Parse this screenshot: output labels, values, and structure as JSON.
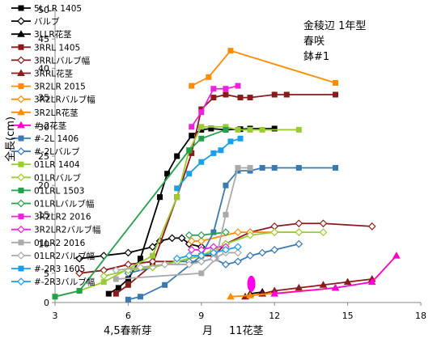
{
  "chart_data": {
    "type": "line",
    "xlabel": "月",
    "ylabel": "全長(cm)",
    "xlim": [
      3,
      18
    ],
    "ylim": [
      0,
      50
    ],
    "xticks": [
      3,
      6,
      9,
      12,
      15,
      18
    ],
    "yticks": [
      0,
      5,
      10,
      15,
      20,
      25,
      30,
      35,
      40,
      45,
      50
    ],
    "grid": "none",
    "legend_position": "left-overlay",
    "annotations": [
      {
        "id": "title1",
        "text": "金稜辺  1年型",
        "color": "#000000"
      },
      {
        "id": "title2",
        "text": "春咲",
        "color": "#000000"
      },
      {
        "id": "title3",
        "text": "鉢#1",
        "color": "#000000"
      },
      {
        "id": "spring",
        "text": "4,5春新芽",
        "color": "#1e1ecc",
        "x": 6.7
      },
      {
        "id": "autumn",
        "text": "11花茎",
        "color": "#1e1ecc",
        "x": 11.0
      }
    ],
    "series": [
      {
        "name": "5L LR 1405",
        "color": "#000000",
        "marker": "square",
        "fill": true,
        "x": [
          5.2,
          5.6,
          6.0,
          6.5,
          7.3,
          7.6,
          8.0,
          8.6,
          9.0,
          9.4,
          10.0,
          10.6,
          11.0,
          12.0
        ],
        "y": [
          1.5,
          2.5,
          4.0,
          7.5,
          18.0,
          22.0,
          25.0,
          28.5,
          29.5,
          29.7,
          29.5,
          29.6,
          29.7,
          29.7
        ]
      },
      {
        "name": "バルブ",
        "color": "#000000",
        "marker": "diamond",
        "fill": false,
        "x": [
          4.0,
          5.0,
          6.0,
          7.0,
          7.3,
          7.8,
          8.2,
          8.5,
          9.0
        ],
        "y": [
          7.5,
          8.0,
          8.5,
          9.5,
          10.5,
          11.0,
          11.0,
          10.0,
          9.5
        ]
      },
      {
        "name": "3LLR花茎",
        "color": "#000000",
        "marker": "triangle",
        "fill": true,
        "x": [
          11.0,
          11.5
        ],
        "y": [
          1.5,
          1.8
        ]
      },
      {
        "name": "3RRL 1405",
        "color": "#8b1a1a",
        "marker": "square",
        "fill": true,
        "x": [
          5.5,
          6.0,
          7.0,
          8.0,
          8.6,
          9.0,
          9.5,
          10.0,
          10.6,
          11.0,
          12.0,
          12.5,
          14.5
        ],
        "y": [
          1.5,
          3.0,
          6.5,
          18.0,
          25.5,
          33.0,
          35.0,
          35.5,
          35.0,
          35.0,
          35.5,
          35.5,
          35.5
        ]
      },
      {
        "name": "3RRLバルブ幅",
        "color": "#8b1a1a",
        "marker": "diamond",
        "fill": false,
        "x": [
          4.0,
          5.0,
          6.0,
          7.0,
          8.0,
          9.0,
          9.5,
          10.0,
          11.0,
          12.0,
          13.0,
          14.0,
          16.0
        ],
        "y": [
          5.0,
          5.5,
          6.5,
          7.0,
          7.0,
          8.0,
          8.0,
          10.0,
          12.0,
          13.0,
          13.5,
          13.5,
          13.0
        ]
      },
      {
        "name": "3RRL花茎",
        "color": "#8b1a1a",
        "marker": "triangle",
        "fill": true,
        "x": [
          10.8,
          11.5,
          12.0,
          13.0,
          14.0,
          15.0,
          16.0
        ],
        "y": [
          1.0,
          1.5,
          2.0,
          2.5,
          3.0,
          3.5,
          4.0
        ]
      },
      {
        "name": "3R2LR 2015",
        "color": "#ff8c00",
        "marker": "square",
        "fill": true,
        "x": [
          8.6,
          9.3,
          10.2,
          14.5
        ],
        "y": [
          37.0,
          38.5,
          43.0,
          37.5
        ]
      },
      {
        "name": "3R2LRバルブ幅",
        "color": "#ff8c00",
        "marker": "diamond",
        "fill": false,
        "x": [
          8.6,
          9.0,
          10.5,
          11.0,
          12.0,
          13.0
        ],
        "y": [
          10.5,
          10.5,
          12.0,
          12.0,
          12.0,
          12.0
        ]
      },
      {
        "name": "3R2LR花茎",
        "color": "#ff8c00",
        "marker": "triangle",
        "fill": true,
        "x": [
          10.2,
          11.0,
          14.5
        ],
        "y": [
          1.0,
          1.2,
          2.5
        ]
      },
      {
        "name": "#-2花茎",
        "color": "#ff00cc",
        "marker": "triangle",
        "fill": true,
        "x": [
          12.0,
          14.5,
          16.0,
          17.0
        ],
        "y": [
          1.5,
          2.5,
          3.5,
          8.0
        ]
      },
      {
        "name": "#-2L 1406",
        "color": "#3a7ab0",
        "marker": "square",
        "fill": true,
        "x": [
          6.0,
          6.5,
          7.5,
          9.0,
          9.5,
          10.0,
          10.5,
          11.0,
          11.5,
          12.0,
          13.0,
          14.5
        ],
        "y": [
          0.5,
          1.0,
          3.0,
          8.0,
          12.0,
          20.0,
          22.5,
          22.5,
          23.0,
          23.0,
          23.0,
          23.0
        ]
      },
      {
        "name": "#-2Lバルブ",
        "color": "#3a7ab0",
        "marker": "diamond",
        "fill": false,
        "x": [
          6.0,
          7.0,
          8.0,
          8.5,
          9.0,
          9.5,
          10.0,
          10.5,
          11.0,
          11.5,
          12.0,
          13.0
        ],
        "y": [
          5.0,
          6.0,
          7.0,
          7.0,
          7.0,
          7.5,
          6.5,
          7.0,
          8.0,
          8.5,
          9.0,
          10.0
        ]
      },
      {
        "name": "01LR 1404",
        "color": "#9acd32",
        "marker": "square",
        "fill": true,
        "x": [
          3.0,
          4.0,
          5.0,
          7.0,
          8.0,
          8.5,
          9.0,
          10.0,
          10.5,
          11.0,
          11.5,
          13.0
        ],
        "y": [
          1.0,
          2.0,
          3.5,
          8.0,
          18.0,
          26.0,
          30.0,
          30.0,
          29.5,
          29.5,
          29.5,
          29.5
        ]
      },
      {
        "name": "01LRバルブ",
        "color": "#9acd32",
        "marker": "diamond",
        "fill": false,
        "x": [
          5.0,
          6.0,
          7.0,
          8.0,
          9.0,
          9.5,
          10.0,
          11.0,
          12.0,
          13.0,
          14.0
        ],
        "y": [
          4.5,
          5.5,
          6.0,
          7.0,
          8.0,
          9.0,
          10.0,
          11.5,
          12.0,
          12.0,
          12.0
        ]
      },
      {
        "name": "01LRL 1503",
        "color": "#22a04a",
        "marker": "square",
        "fill": true,
        "x": [
          3.0,
          4.0,
          8.5,
          9.0,
          10.0
        ],
        "y": [
          1.0,
          2.0,
          26.0,
          28.0,
          29.5
        ]
      },
      {
        "name": "01LRLバルブ幅",
        "color": "#22a04a",
        "marker": "diamond",
        "fill": false,
        "x": [
          8.5,
          9.0,
          10.0
        ],
        "y": [
          11.5,
          11.5,
          12.0
        ]
      },
      {
        "name": "3R2LR2 2016",
        "color": "#ee22dd",
        "marker": "square",
        "fill": true,
        "x": [
          8.6,
          9.0,
          9.5,
          10.0,
          10.5
        ],
        "y": [
          30.0,
          32.5,
          36.5,
          36.5,
          37.0
        ]
      },
      {
        "name": "3R2LR2バルブ幅",
        "color": "#ee22dd",
        "marker": "diamond",
        "fill": false,
        "x": [
          8.6,
          9.0,
          9.5,
          10.0
        ],
        "y": [
          9.0,
          9.0,
          9.5,
          9.5
        ]
      },
      {
        "name": "01LR2 2016",
        "color": "#aaaaaa",
        "marker": "square",
        "fill": true,
        "x": [
          5.5,
          9.0,
          9.6,
          10.0,
          10.5,
          11.0
        ],
        "y": [
          4.0,
          5.0,
          7.5,
          15.0,
          23.0,
          23.0
        ]
      },
      {
        "name": "01LR2バルブ幅",
        "color": "#aaaaaa",
        "marker": "diamond",
        "fill": false,
        "x": [
          5.5,
          6.5,
          7.5,
          8.5,
          9.0,
          9.5,
          10.0,
          10.5
        ],
        "y": [
          5.5,
          6.0,
          6.5,
          6.5,
          7.0,
          7.5,
          8.5,
          8.5
        ]
      },
      {
        "name": "#-2R3 1605",
        "color": "#1aa0e8",
        "marker": "square",
        "fill": true,
        "x": [
          8.0,
          8.5,
          9.0,
          9.5,
          9.8,
          10.2,
          10.6
        ],
        "y": [
          19.5,
          22.0,
          24.0,
          25.5,
          26.0,
          27.5,
          28.0
        ]
      },
      {
        "name": "#-2R3バルブ幅",
        "color": "#1aa0e8",
        "marker": "diamond",
        "fill": false,
        "x": [
          8.0,
          8.5,
          9.0,
          9.5,
          10.0,
          10.5
        ],
        "y": [
          7.5,
          8.0,
          8.0,
          8.5,
          9.0,
          9.5
        ]
      }
    ]
  }
}
